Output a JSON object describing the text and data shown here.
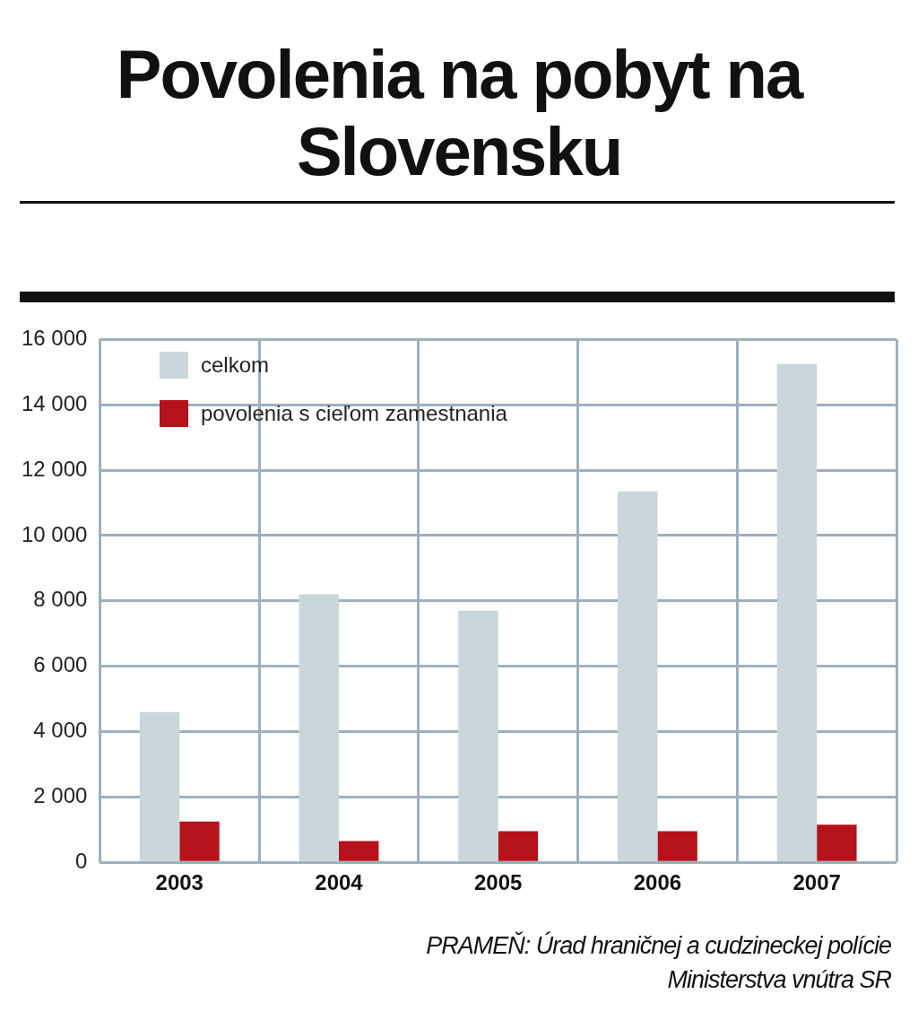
{
  "chart_data": {
    "type": "bar",
    "title": "Povolenia na pobyt na Slovensku",
    "categories": [
      "2003",
      "2004",
      "2005",
      "2006",
      "2007"
    ],
    "series": [
      {
        "name": "celkom",
        "color": "#c9d6da",
        "values": [
          4600,
          8200,
          7700,
          11350,
          15250
        ]
      },
      {
        "name": "povolenia s cieľom zamestnania",
        "color": "#b5121b",
        "values": [
          1250,
          650,
          950,
          950,
          1150
        ]
      }
    ],
    "ylim": [
      0,
      16000
    ],
    "yticks": [
      0,
      {
        "value": 2000,
        "label": "2 000"
      },
      {
        "value": 4000,
        "label": "4 000"
      },
      {
        "value": 6000,
        "label": "6 000"
      },
      {
        "value": 8000,
        "label": "8 000"
      },
      {
        "value": 10000,
        "label": "10 000"
      },
      {
        "value": 12000,
        "label": "12 000"
      },
      {
        "value": 14000,
        "label": "14 000"
      },
      {
        "value": 16000,
        "label": "16 000"
      }
    ],
    "grid": true,
    "legend": "top left",
    "annotations": [
      "PRAMEŇ: Úrad hraničnej a cudzineckej polície Ministerstva vnútra SR"
    ]
  }
}
